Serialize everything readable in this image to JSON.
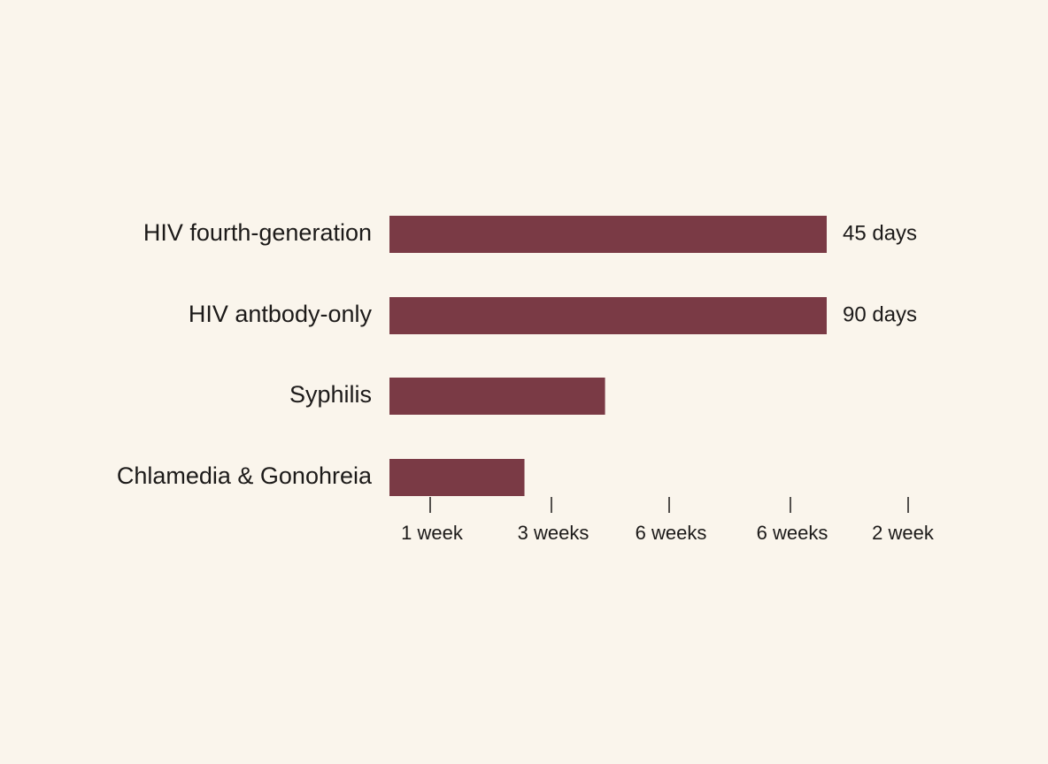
{
  "chart_data": {
    "type": "bar",
    "orientation": "horizontal",
    "title": "",
    "xlabel": "",
    "ylabel": "",
    "categories": [
      "HIV fourth-generation",
      "HIV antbody-only",
      "Syphilis",
      "Chlamedia & Gonohreia"
    ],
    "series": [
      {
        "values": [
          4.0,
          4.0,
          1.8,
          1.0
        ]
      }
    ],
    "data_labels": [
      "45 days",
      "90 days",
      "",
      ""
    ],
    "x_ticks": [
      {
        "value": 0.0,
        "label": "1 week"
      },
      {
        "value": 1.0,
        "label": "3 weeks"
      },
      {
        "value": 2.0,
        "label": "6 weeks"
      },
      {
        "value": 3.0,
        "label": "6 weeks"
      },
      {
        "value": 4.0,
        "label": "2 week"
      }
    ],
    "xlim": [
      -0.34,
      4.0
    ],
    "grid": false,
    "legend": "none",
    "bar_color": "#7a3a45",
    "text_color": "#1c1a19",
    "background_color": "#faf5ec"
  }
}
